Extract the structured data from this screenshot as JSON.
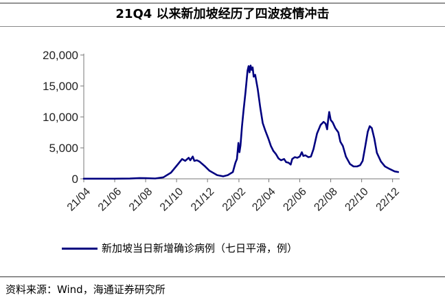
{
  "title": "21Q4 以来新加坡经历了四波疫情冲击",
  "source": "资料来源：Wind，海通证券研究所",
  "colors": {
    "line": "#000080",
    "axis": "#777777"
  },
  "chart_data": {
    "type": "line",
    "title": "21Q4 以来新加坡经历了四波疫情冲击",
    "ylabel": "",
    "xlabel": "",
    "ylim": [
      0,
      20000
    ],
    "yticks": [
      0,
      5000,
      10000,
      15000,
      20000
    ],
    "ytick_labels": [
      "0",
      "5,000",
      "10,000",
      "15,000",
      "20,000"
    ],
    "xlim": [
      "2021-04-01",
      "2022-12-15"
    ],
    "xticks": [
      "2021-04-01",
      "2021-06-01",
      "2021-08-01",
      "2021-10-01",
      "2021-12-01",
      "2022-02-01",
      "2022-04-01",
      "2022-06-01",
      "2022-08-01",
      "2022-10-01",
      "2022-12-01"
    ],
    "xtick_labels": [
      "21/04",
      "21/06",
      "21/08",
      "21/10",
      "21/12",
      "22/02",
      "22/04",
      "22/06",
      "22/08",
      "22/10",
      "22/12"
    ],
    "grid": false,
    "legend": "bottom",
    "series": [
      {
        "name": "新加坡当日新增确诊病例（七日平滑，例）",
        "points": [
          [
            "2021-04-01",
            20
          ],
          [
            "2021-05-01",
            25
          ],
          [
            "2021-06-01",
            20
          ],
          [
            "2021-07-01",
            40
          ],
          [
            "2021-07-20",
            120
          ],
          [
            "2021-08-01",
            100
          ],
          [
            "2021-08-20",
            60
          ],
          [
            "2021-09-05",
            250
          ],
          [
            "2021-09-20",
            1000
          ],
          [
            "2021-10-05",
            2500
          ],
          [
            "2021-10-12",
            3200
          ],
          [
            "2021-10-18",
            2900
          ],
          [
            "2021-10-25",
            3400
          ],
          [
            "2021-10-28",
            3000
          ],
          [
            "2021-11-02",
            3600
          ],
          [
            "2021-11-05",
            2900
          ],
          [
            "2021-11-10",
            3000
          ],
          [
            "2021-11-15",
            2800
          ],
          [
            "2021-11-25",
            2100
          ],
          [
            "2021-12-05",
            1300
          ],
          [
            "2021-12-20",
            600
          ],
          [
            "2022-01-01",
            400
          ],
          [
            "2022-01-10",
            600
          ],
          [
            "2022-01-20",
            1100
          ],
          [
            "2022-01-25",
            2600
          ],
          [
            "2022-01-28",
            3200
          ],
          [
            "2022-01-31",
            5800
          ],
          [
            "2022-02-02",
            4300
          ],
          [
            "2022-02-04",
            5400
          ],
          [
            "2022-02-07",
            8500
          ],
          [
            "2022-02-10",
            11000
          ],
          [
            "2022-02-14",
            14000
          ],
          [
            "2022-02-18",
            17500
          ],
          [
            "2022-02-20",
            18200
          ],
          [
            "2022-02-22",
            17200
          ],
          [
            "2022-02-24",
            18300
          ],
          [
            "2022-02-26",
            17600
          ],
          [
            "2022-02-28",
            18000
          ],
          [
            "2022-03-02",
            16500
          ],
          [
            "2022-03-05",
            16800
          ],
          [
            "2022-03-10",
            14500
          ],
          [
            "2022-03-15",
            11500
          ],
          [
            "2022-03-20",
            9000
          ],
          [
            "2022-03-25",
            7800
          ],
          [
            "2022-03-31",
            6500
          ],
          [
            "2022-04-05",
            5300
          ],
          [
            "2022-04-10",
            4500
          ],
          [
            "2022-04-15",
            4000
          ],
          [
            "2022-04-20",
            3300
          ],
          [
            "2022-04-25",
            3000
          ],
          [
            "2022-05-01",
            3200
          ],
          [
            "2022-05-05",
            2700
          ],
          [
            "2022-05-10",
            2600
          ],
          [
            "2022-05-14",
            2300
          ],
          [
            "2022-05-17",
            3200
          ],
          [
            "2022-05-22",
            3500
          ],
          [
            "2022-05-27",
            3400
          ],
          [
            "2022-06-01",
            3600
          ],
          [
            "2022-06-05",
            4300
          ],
          [
            "2022-06-08",
            3700
          ],
          [
            "2022-06-12",
            3800
          ],
          [
            "2022-06-18",
            3500
          ],
          [
            "2022-06-23",
            3600
          ],
          [
            "2022-06-28",
            4800
          ],
          [
            "2022-07-05",
            7300
          ],
          [
            "2022-07-12",
            8700
          ],
          [
            "2022-07-18",
            9200
          ],
          [
            "2022-07-22",
            8900
          ],
          [
            "2022-07-25",
            8000
          ],
          [
            "2022-07-27",
            9600
          ],
          [
            "2022-07-29",
            10800
          ],
          [
            "2022-08-01",
            9500
          ],
          [
            "2022-08-05",
            9100
          ],
          [
            "2022-08-10",
            8200
          ],
          [
            "2022-08-16",
            7500
          ],
          [
            "2022-08-20",
            6000
          ],
          [
            "2022-08-25",
            5300
          ],
          [
            "2022-08-31",
            3600
          ],
          [
            "2022-09-08",
            2400
          ],
          [
            "2022-09-15",
            2000
          ],
          [
            "2022-09-22",
            2000
          ],
          [
            "2022-09-28",
            2200
          ],
          [
            "2022-10-03",
            2900
          ],
          [
            "2022-10-08",
            5200
          ],
          [
            "2022-10-13",
            7600
          ],
          [
            "2022-10-17",
            8500
          ],
          [
            "2022-10-21",
            8200
          ],
          [
            "2022-10-26",
            6500
          ],
          [
            "2022-10-31",
            4200
          ],
          [
            "2022-11-08",
            2800
          ],
          [
            "2022-11-16",
            2000
          ],
          [
            "2022-11-25",
            1600
          ],
          [
            "2022-12-05",
            1200
          ],
          [
            "2022-12-12",
            1100
          ]
        ]
      }
    ]
  }
}
